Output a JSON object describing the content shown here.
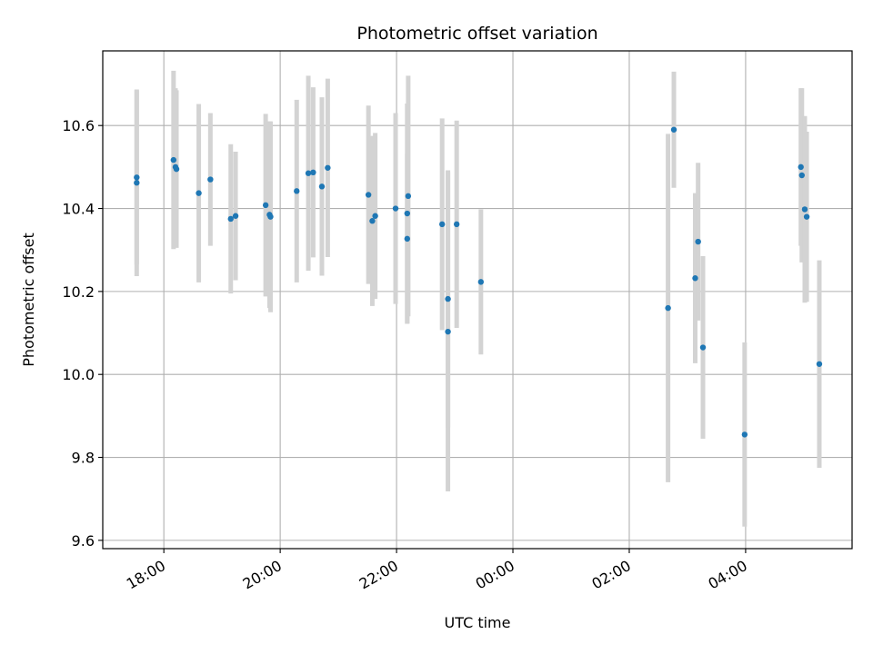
{
  "chart_data": {
    "type": "scatter",
    "title": "Photometric offset variation",
    "xlabel": "UTC time",
    "ylabel": "Photometric offset",
    "x_tick_labels": [
      "18:00",
      "20:00",
      "22:00",
      "00:00",
      "02:00",
      "04:00"
    ],
    "x_ticks_hours": [
      18,
      20,
      22,
      24,
      26,
      28
    ],
    "xlim_hours": [
      16.95,
      29.83
    ],
    "ylim": [
      9.58,
      10.78
    ],
    "y_ticks": [
      9.6,
      9.8,
      10.0,
      10.2,
      10.4,
      10.6
    ],
    "y_tick_labels": [
      "9.6",
      "9.8",
      "10.0",
      "10.2",
      "10.4",
      "10.6"
    ],
    "grid": true,
    "marker_color": "#1f77b4",
    "errorbar_color": "#d3d3d3",
    "series": [
      {
        "points": [
          {
            "time": "17:32",
            "y": 10.462,
            "err": 0.225
          },
          {
            "time": "17:32",
            "y": 10.475,
            "err": 0.21
          },
          {
            "time": "18:10",
            "y": 10.517,
            "err": 0.215
          },
          {
            "time": "18:12",
            "y": 10.5,
            "err": 0.19
          },
          {
            "time": "18:13",
            "y": 10.495,
            "err": 0.19
          },
          {
            "time": "18:36",
            "y": 10.437,
            "err": 0.215
          },
          {
            "time": "18:48",
            "y": 10.47,
            "err": 0.16
          },
          {
            "time": "19:09",
            "y": 10.375,
            "err": 0.18
          },
          {
            "time": "19:14",
            "y": 10.382,
            "err": 0.155
          },
          {
            "time": "19:45",
            "y": 10.408,
            "err": 0.22
          },
          {
            "time": "19:49",
            "y": 10.385,
            "err": 0.225
          },
          {
            "time": "19:50",
            "y": 10.38,
            "err": 0.23
          },
          {
            "time": "20:17",
            "y": 10.442,
            "err": 0.22
          },
          {
            "time": "20:29",
            "y": 10.485,
            "err": 0.235
          },
          {
            "time": "20:34",
            "y": 10.487,
            "err": 0.205
          },
          {
            "time": "20:43",
            "y": 10.453,
            "err": 0.215
          },
          {
            "time": "20:49",
            "y": 10.498,
            "err": 0.215
          },
          {
            "time": "21:31",
            "y": 10.433,
            "err": 0.215
          },
          {
            "time": "21:35",
            "y": 10.37,
            "err": 0.205
          },
          {
            "time": "21:38",
            "y": 10.382,
            "err": 0.2
          },
          {
            "time": "21:59",
            "y": 10.4,
            "err": 0.23
          },
          {
            "time": "22:11",
            "y": 10.327,
            "err": 0.205
          },
          {
            "time": "22:11",
            "y": 10.388,
            "err": 0.265
          },
          {
            "time": "22:12",
            "y": 10.43,
            "err": 0.29
          },
          {
            "time": "22:47",
            "y": 10.362,
            "err": 0.255
          },
          {
            "time": "22:53",
            "y": 10.182,
            "err": 0.31
          },
          {
            "time": "22:53",
            "y": 10.103,
            "err": 0.385
          },
          {
            "time": "23:02",
            "y": 10.362,
            "err": 0.25
          },
          {
            "time": "23:27",
            "y": 10.223,
            "err": 0.175
          },
          {
            "time": "02:40",
            "y": 10.16,
            "err": 0.42
          },
          {
            "time": "02:46",
            "y": 10.59,
            "err": 0.14
          },
          {
            "time": "03:08",
            "y": 10.232,
            "err": 0.205
          },
          {
            "time": "03:11",
            "y": 10.32,
            "err": 0.19
          },
          {
            "time": "03:16",
            "y": 10.065,
            "err": 0.22
          },
          {
            "time": "03:59",
            "y": 9.855,
            "err": 0.222
          },
          {
            "time": "04:57",
            "y": 10.5,
            "err": 0.19
          },
          {
            "time": "04:58",
            "y": 10.48,
            "err": 0.21
          },
          {
            "time": "05:01",
            "y": 10.398,
            "err": 0.225
          },
          {
            "time": "05:03",
            "y": 10.38,
            "err": 0.205
          },
          {
            "time": "05:16",
            "y": 10.025,
            "err": 0.25
          }
        ]
      }
    ]
  }
}
